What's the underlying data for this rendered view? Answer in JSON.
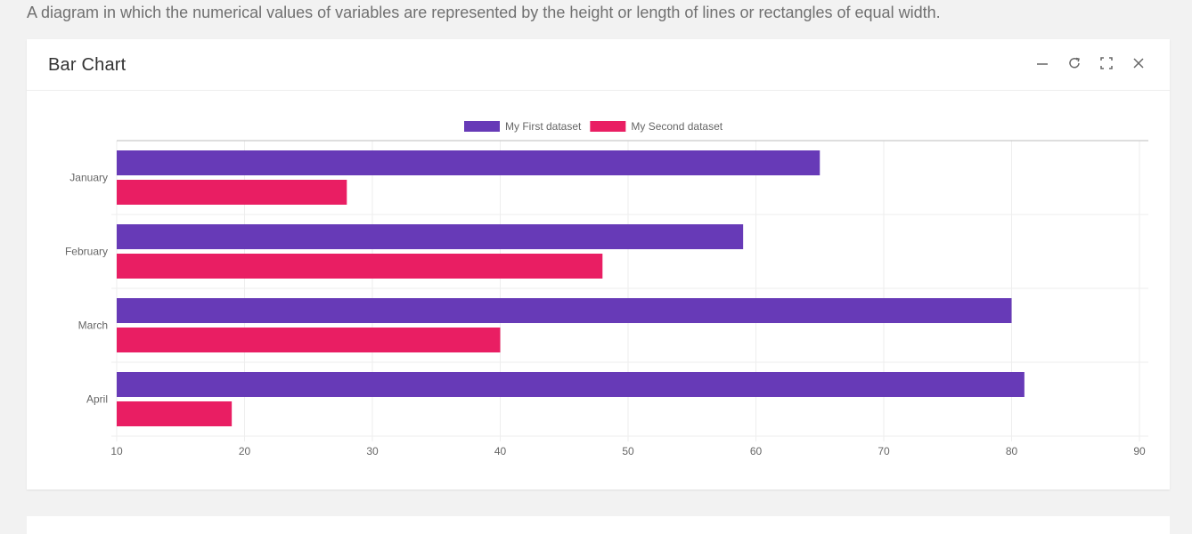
{
  "page": {
    "description": "A diagram in which the numerical values of variables are represented by the height or length of lines or rectangles of equal width."
  },
  "card": {
    "title": "Bar Chart",
    "tools": [
      "minimize-icon",
      "refresh-icon",
      "fullscreen-icon",
      "close-icon"
    ]
  },
  "colors": {
    "series1": "#673ab7",
    "series2": "#e91e63",
    "grid": "#eeeeee",
    "axis": "#bdbdbd",
    "text": "#666666"
  },
  "chart_data": {
    "type": "bar",
    "orientation": "horizontal",
    "categories": [
      "January",
      "February",
      "March",
      "April"
    ],
    "series": [
      {
        "name": "My First dataset",
        "values": [
          65,
          59,
          80,
          81
        ]
      },
      {
        "name": "My Second dataset",
        "values": [
          28,
          48,
          40,
          19
        ]
      }
    ],
    "xlim": [
      10,
      90
    ],
    "xticks": [
      10,
      20,
      30,
      40,
      50,
      60,
      70,
      80,
      90
    ],
    "grid": true,
    "legend": "top-center"
  }
}
